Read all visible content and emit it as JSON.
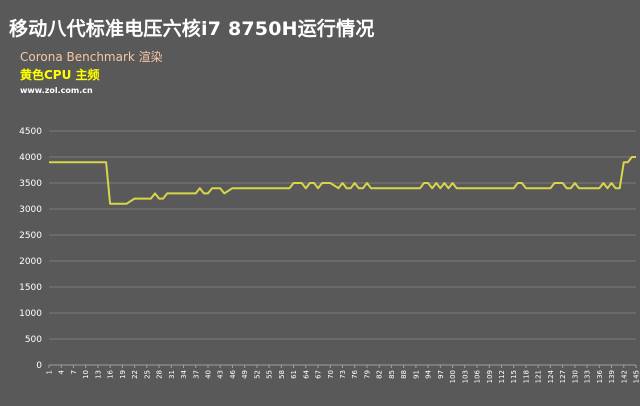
{
  "header": {
    "title": "移动八代标准电压六核i7 8750H运行情况",
    "subtitle": "Corona Benchmark 渲染",
    "legend": "黄色CPU 主频",
    "source": "www.zol.com.cn"
  },
  "colors": {
    "background": "#595959",
    "series": "#d9d54a",
    "grid": "#7a7a7a",
    "subtitle": "#f6c8a6",
    "legend": "#ffff00"
  },
  "chart_data": {
    "type": "line",
    "title": "移动八代标准电压六核i7 8750H运行情况",
    "subtitle": "Corona Benchmark 渲染",
    "xlabel": "",
    "ylabel": "",
    "ylim": [
      0,
      4500
    ],
    "yticks": [
      0,
      500,
      1000,
      1500,
      2000,
      2500,
      3000,
      3500,
      4000,
      4500
    ],
    "xlim": [
      1,
      145
    ],
    "xtick_step": 3,
    "grid": "horizontal",
    "series": [
      {
        "name": "黄色CPU 主频",
        "x": [
          1,
          14,
          15,
          16,
          19,
          20,
          21,
          22,
          25,
          26,
          27,
          28,
          29,
          30,
          31,
          36,
          37,
          38,
          39,
          40,
          41,
          42,
          43,
          44,
          46,
          55,
          60,
          61,
          62,
          63,
          64,
          65,
          66,
          67,
          68,
          69,
          70,
          72,
          73,
          74,
          75,
          76,
          77,
          78,
          79,
          80,
          81,
          88,
          92,
          93,
          94,
          95,
          96,
          97,
          98,
          99,
          100,
          101,
          102,
          103,
          104,
          105,
          115,
          116,
          117,
          118,
          119,
          124,
          125,
          126,
          127,
          128,
          129,
          130,
          131,
          132,
          136,
          137,
          138,
          139,
          140,
          141,
          142,
          143,
          144,
          145
        ],
        "values": [
          3900,
          3900,
          3900,
          3100,
          3100,
          3100,
          3150,
          3200,
          3200,
          3200,
          3300,
          3200,
          3200,
          3300,
          3300,
          3300,
          3300,
          3400,
          3300,
          3300,
          3400,
          3400,
          3400,
          3300,
          3400,
          3400,
          3400,
          3500,
          3500,
          3500,
          3400,
          3500,
          3500,
          3400,
          3500,
          3500,
          3500,
          3400,
          3500,
          3400,
          3400,
          3500,
          3400,
          3400,
          3500,
          3400,
          3400,
          3400,
          3400,
          3500,
          3500,
          3400,
          3500,
          3400,
          3500,
          3400,
          3500,
          3400,
          3400,
          3400,
          3400,
          3400,
          3400,
          3500,
          3500,
          3400,
          3400,
          3400,
          3500,
          3500,
          3500,
          3400,
          3400,
          3500,
          3400,
          3400,
          3400,
          3500,
          3400,
          3500,
          3400,
          3400,
          3900,
          3900,
          4000,
          4000
        ]
      }
    ]
  }
}
